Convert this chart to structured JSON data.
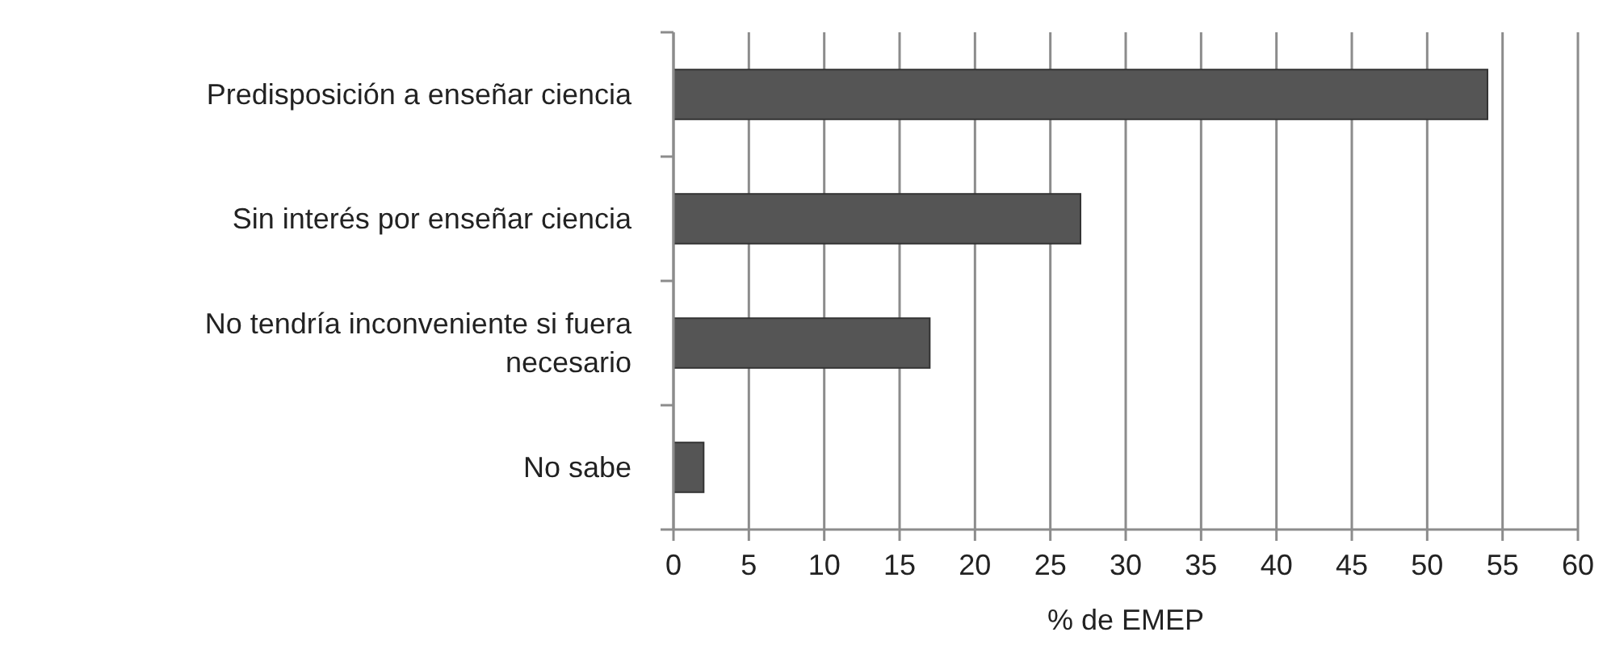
{
  "chart_data": {
    "type": "bar",
    "orientation": "horizontal",
    "xlabel": "% de EMEP",
    "categories": [
      "Predisposición a enseñar ciencia",
      "Sin interés por enseñar ciencia",
      "No tendría inconveniente si fuera necesario",
      "No sabe"
    ],
    "values": [
      54,
      27,
      17,
      2
    ],
    "color": "#555555",
    "xlim": [
      0,
      60
    ],
    "xticks": [
      0,
      5,
      10,
      15,
      20,
      25,
      30,
      35,
      40,
      45,
      50,
      55,
      60
    ],
    "grid": "x"
  }
}
